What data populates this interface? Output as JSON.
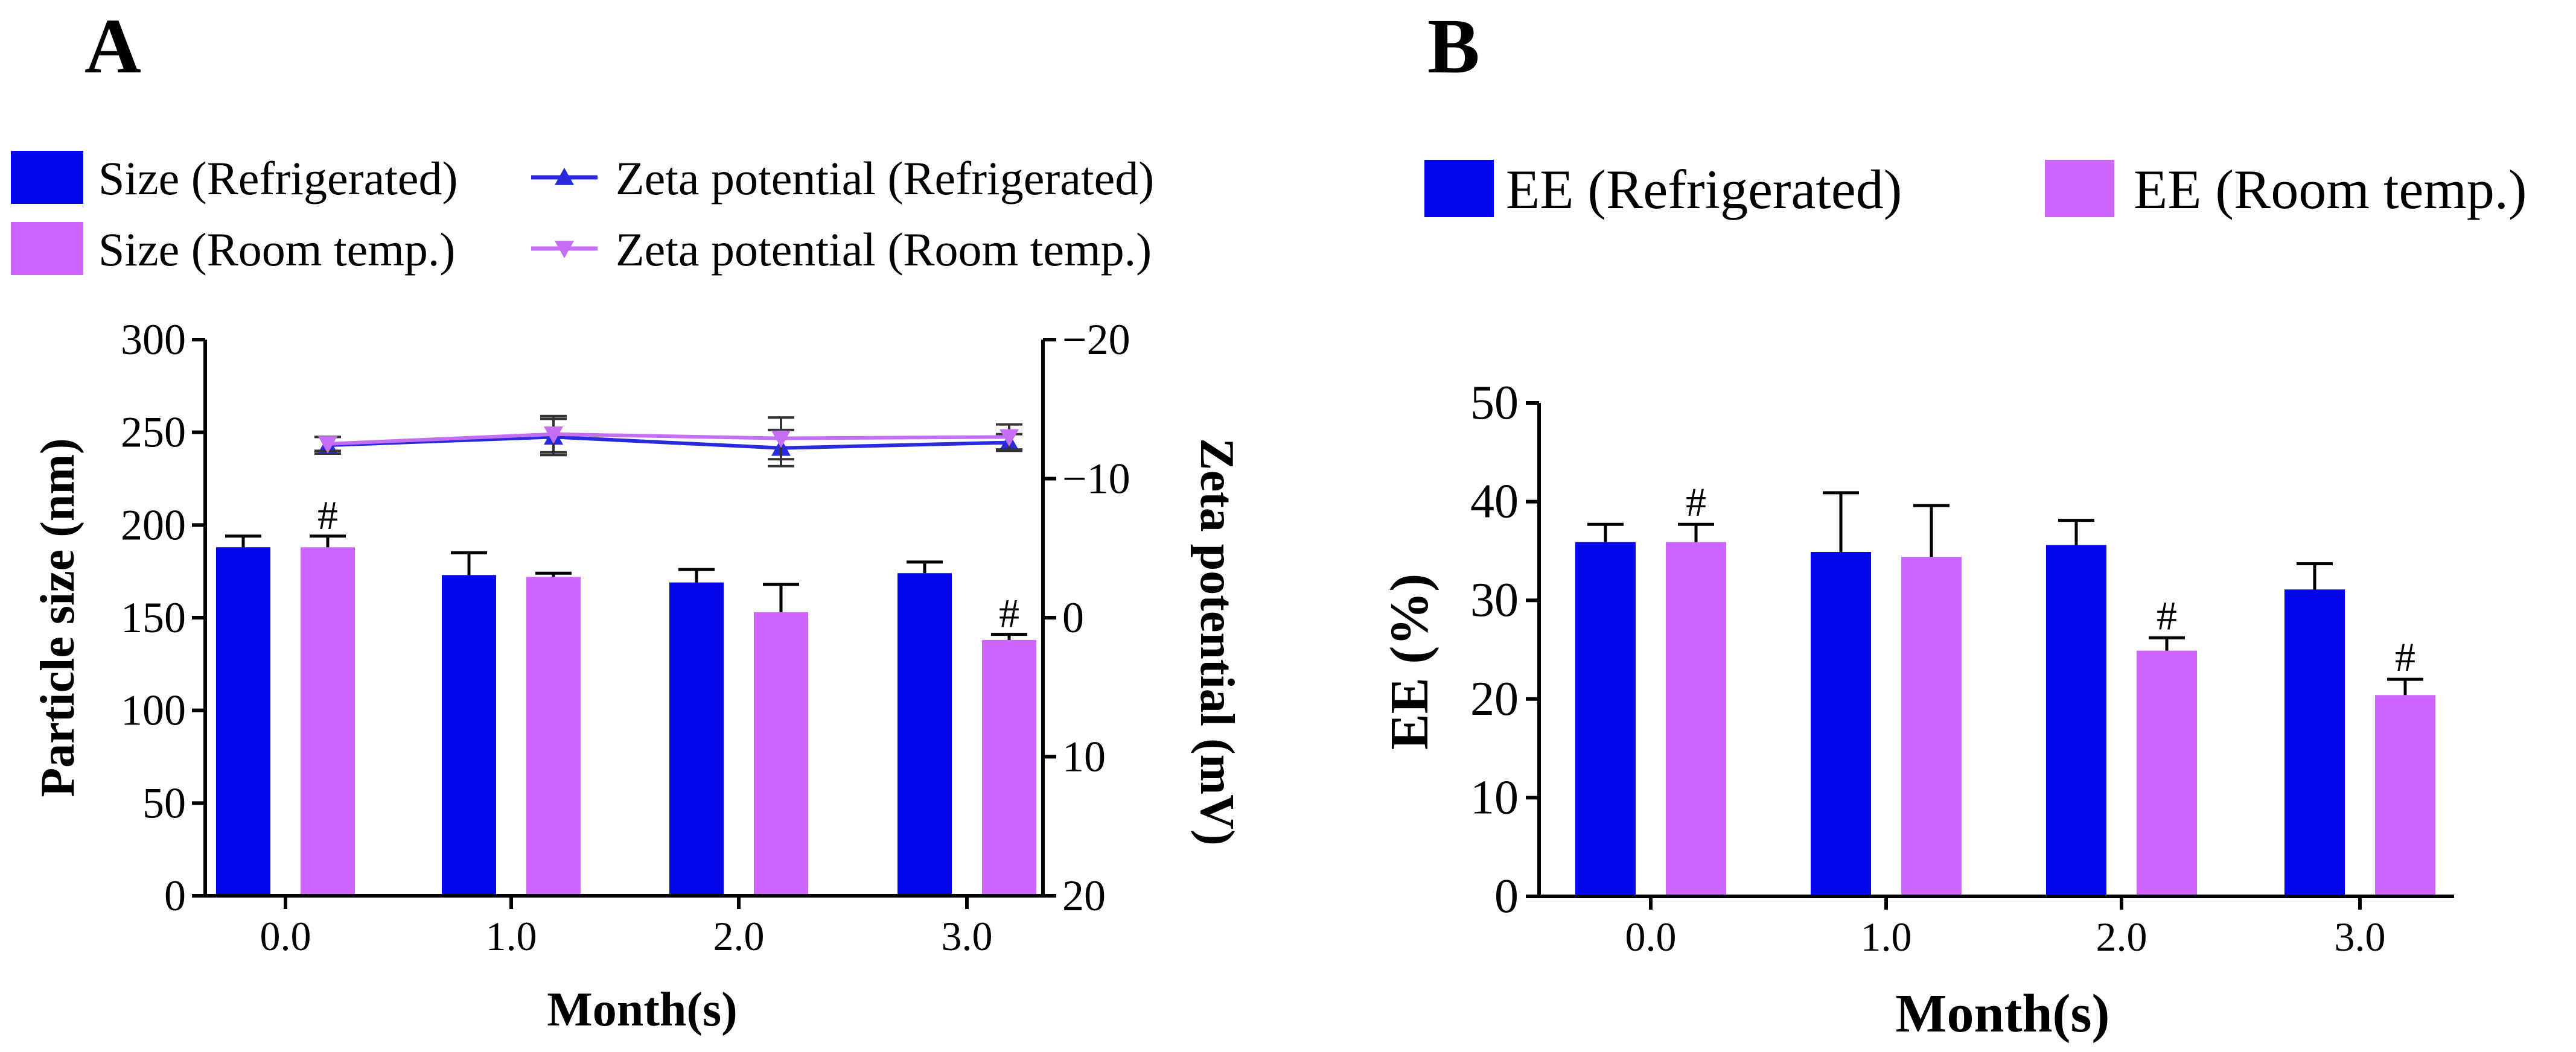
{
  "colors": {
    "refrigerated": "#0505ee",
    "room_temp": "#cc66ff",
    "zeta_refrigerated": "#2a2add",
    "zeta_room_temp": "#c46ef5"
  },
  "chart_data": [
    {
      "panel": "A",
      "type": "bar",
      "combo": "bar+line (dual y-axis)",
      "categories": [
        "0.0",
        "1.0",
        "2.0",
        "3.0"
      ],
      "xlabel": "Month(s)",
      "ylabel": "Particle size (nm)",
      "ylim": [
        0,
        300
      ],
      "yticks": [
        "0",
        "50",
        "100",
        "150",
        "200",
        "250",
        "300"
      ],
      "y2label": "Zeta potential (mV)",
      "y2lim": [
        20,
        -20
      ],
      "y2ticks": [
        "−20",
        "−10",
        "0",
        "10",
        "20"
      ],
      "series": [
        {
          "name": "Size (Refrigerated)",
          "kind": "bar",
          "values": [
            188,
            173,
            169,
            174
          ],
          "errors": [
            6,
            12,
            7,
            6
          ],
          "marks": [
            "",
            "",
            "",
            ""
          ]
        },
        {
          "name": "Size (Room temp.)",
          "kind": "bar",
          "values": [
            188,
            172,
            153,
            138
          ],
          "errors": [
            6,
            2,
            15,
            3
          ],
          "marks": [
            "#",
            "",
            "",
            "#"
          ]
        },
        {
          "name": "Zeta potential (Refrigerated)",
          "kind": "line",
          "marker": "triangle-up",
          "values": [
            -12.4,
            -13.0,
            -12.2,
            -12.6
          ],
          "errors": [
            0.6,
            1.3,
            1.3,
            0.6
          ]
        },
        {
          "name": "Zeta potential (Room temp.)",
          "kind": "line",
          "marker": "triangle-down",
          "values": [
            -12.5,
            -13.2,
            -12.9,
            -13.0
          ],
          "errors": [
            0.5,
            1.3,
            1.5,
            0.9
          ]
        }
      ],
      "legend_position": "top",
      "grid": false
    },
    {
      "panel": "B",
      "type": "bar",
      "categories": [
        "0.0",
        "1.0",
        "2.0",
        "3.0"
      ],
      "xlabel": "Month(s)",
      "ylabel": "EE (%)",
      "ylim": [
        0,
        50
      ],
      "yticks": [
        "0",
        "10",
        "20",
        "30",
        "40",
        "50"
      ],
      "series": [
        {
          "name": "EE (Refrigerated)",
          "values": [
            35.9,
            34.9,
            35.6,
            31.1
          ],
          "errors": [
            1.8,
            6.0,
            2.5,
            2.6
          ],
          "marks": [
            "",
            "",
            "",
            ""
          ]
        },
        {
          "name": "EE (Room temp.)",
          "values": [
            35.9,
            34.4,
            24.9,
            20.4
          ],
          "errors": [
            1.8,
            5.2,
            1.3,
            1.6
          ],
          "marks": [
            "#",
            "",
            "#",
            "#"
          ]
        }
      ],
      "legend_position": "top",
      "grid": false
    }
  ]
}
